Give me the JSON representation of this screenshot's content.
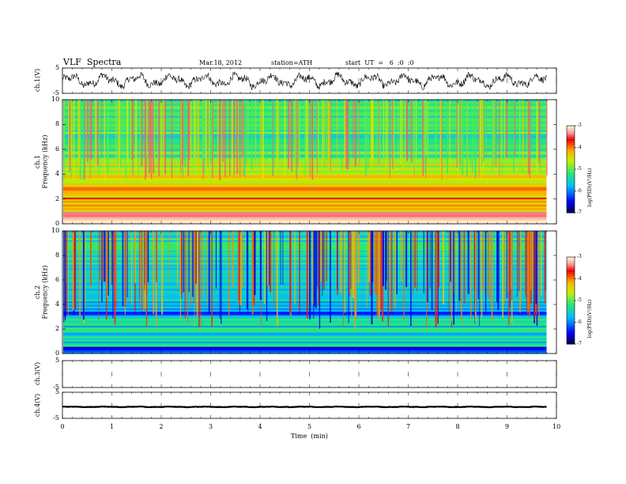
{
  "header": {
    "title": "VLF  Spectra",
    "date": "Mar.18, 2012",
    "station": "station=ATH",
    "start": "start  UT  =   6  :0  :0"
  },
  "chart_data": {
    "type": "heatmap",
    "title": "VLF  Spectra",
    "xlabel": "Time  (min)",
    "xlim": [
      0,
      10
    ],
    "x_ticks": [
      "0",
      "1",
      "2",
      "3",
      "4",
      "5",
      "6",
      "7",
      "8",
      "9",
      "10"
    ],
    "data_end_min": 9.8,
    "panels": [
      {
        "name": "ch.1(V)",
        "type": "line",
        "ylabel": "ch.1(V)",
        "ylim": [
          -5,
          5
        ],
        "y_ticks": [
          "5",
          "-5"
        ],
        "mean": 0,
        "amplitude": 3
      },
      {
        "name": "ch.1 Frequency (kHz)",
        "type": "heatmap",
        "ylabel_1": "ch.1",
        "ylabel_2": "Frequency  (kHz)",
        "ylim": [
          0,
          10
        ],
        "y_ticks": [
          "0",
          "2",
          "4",
          "6",
          "8",
          "10"
        ],
        "colorbar_label": "log(PSD)(V²/Hz)",
        "colorbar_range": [
          -7,
          -3
        ],
        "colorbar_ticks": [
          "-3",
          "-4",
          "-5",
          "-6",
          "-7"
        ],
        "bands": [
          {
            "f0": 0.0,
            "f1": 0.4,
            "level": -3.2
          },
          {
            "f0": 0.4,
            "f1": 1.0,
            "level": -3.6
          },
          {
            "f0": 1.0,
            "f1": 2.2,
            "level": -4.1
          },
          {
            "f0": 2.2,
            "f1": 3.3,
            "level": -4.3
          },
          {
            "f0": 3.3,
            "f1": 5.0,
            "level": -4.6
          },
          {
            "f0": 5.0,
            "f1": 10.0,
            "level": -5.2
          }
        ]
      },
      {
        "name": "ch.2 Frequency (kHz)",
        "type": "heatmap",
        "ylabel_1": "ch.2",
        "ylabel_2": "Frequency  (kHz)",
        "ylim": [
          0,
          10
        ],
        "y_ticks": [
          "0",
          "2",
          "4",
          "6",
          "8",
          "10"
        ],
        "colorbar_label": "log(PSD)(V²/Hz)",
        "colorbar_range": [
          -7,
          -3
        ],
        "colorbar_ticks": [
          "-3",
          "-4",
          "-5",
          "-6",
          "-7"
        ],
        "bands": [
          {
            "f0": 0.0,
            "f1": 0.6,
            "level": -6.3
          },
          {
            "f0": 0.6,
            "f1": 3.0,
            "level": -5.5
          },
          {
            "f0": 3.0,
            "f1": 3.6,
            "level": -6.2
          },
          {
            "f0": 3.6,
            "f1": 6.0,
            "level": -5.7
          },
          {
            "f0": 6.0,
            "f1": 10.0,
            "level": -5.4
          }
        ]
      },
      {
        "name": "ch.3(V)",
        "type": "line",
        "ylabel": "ch.3(V)",
        "ylim": [
          -5,
          5
        ],
        "y_ticks": [
          "5",
          "-5"
        ],
        "mean": 0,
        "amplitude": 0
      },
      {
        "name": "ch.4(V)",
        "type": "line",
        "ylabel": "ch.4(V)",
        "ylim": [
          -5,
          5
        ],
        "y_ticks": [
          "5",
          "-5"
        ],
        "mean": -0.6,
        "amplitude": 0.15
      }
    ]
  }
}
